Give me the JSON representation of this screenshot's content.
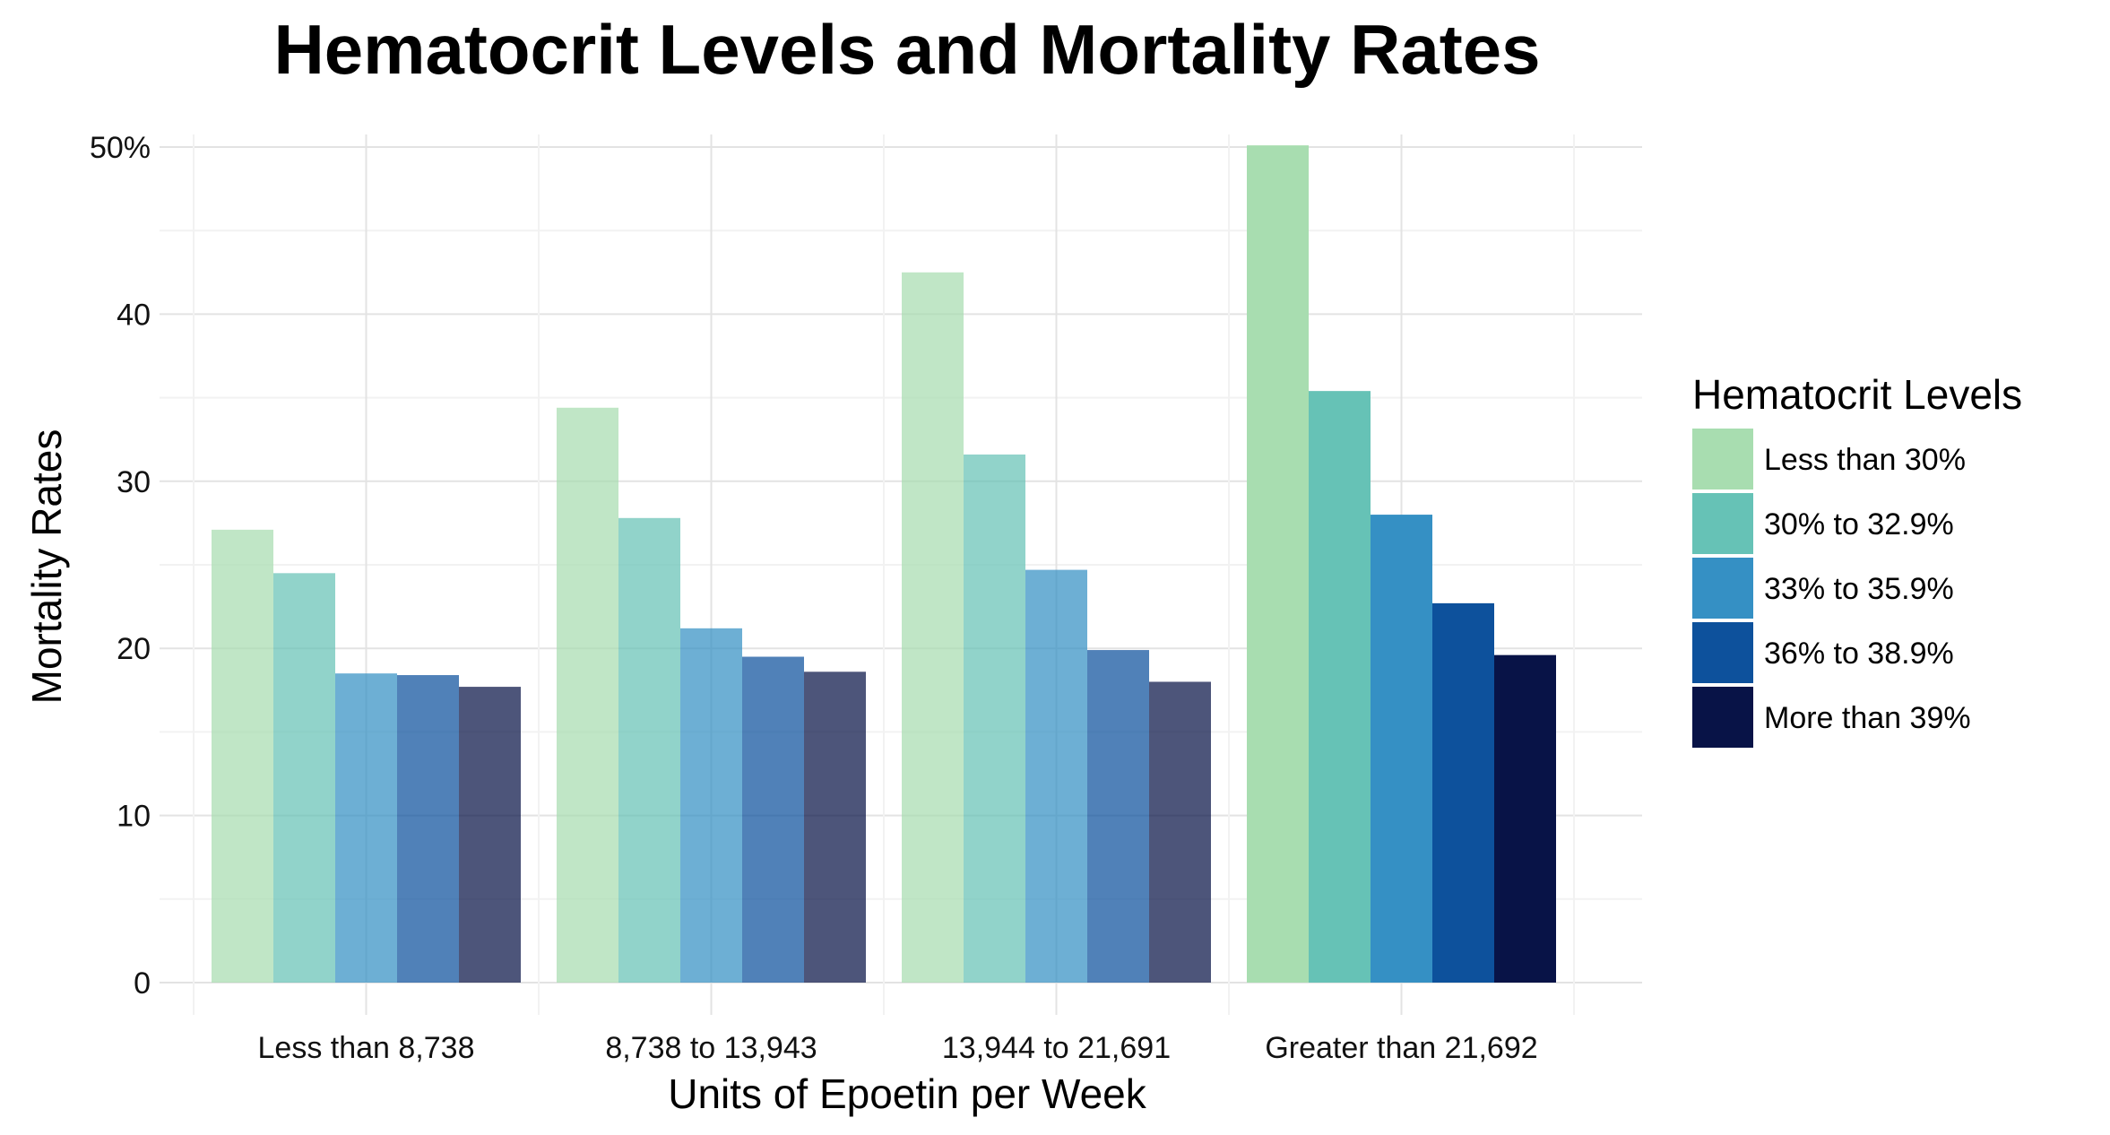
{
  "chart_data": {
    "type": "bar",
    "title": "Hematocrit Levels and Mortality Rates",
    "xlabel": "Units of Epoetin per Week",
    "ylabel": "Mortality Rates",
    "ylim": [
      0,
      50
    ],
    "y_ticks": [
      "0",
      "10",
      "20",
      "30",
      "40",
      "50%"
    ],
    "y_tick_values": [
      0,
      10,
      20,
      30,
      40,
      50
    ],
    "grid": true,
    "categories": [
      "Less than 8,738",
      "8,738 to 13,943",
      "13,944 to 21,691",
      "Greater than 21,692"
    ],
    "legend": {
      "title": "Hematocrit Levels",
      "placement": "right"
    },
    "series": [
      {
        "name": "Less than 30%",
        "color": "#a8ddb0",
        "values": [
          27.1,
          34.4,
          42.5,
          50.1
        ]
      },
      {
        "name": "30% to 32.9%",
        "color": "#66c2b6",
        "values": [
          24.5,
          27.8,
          31.6,
          35.4
        ]
      },
      {
        "name": "33% to 35.9%",
        "color": "#3590c4",
        "values": [
          18.5,
          21.2,
          24.7,
          28.0
        ]
      },
      {
        "name": "36% to 38.9%",
        "color": "#0d519c",
        "values": [
          18.4,
          19.5,
          19.9,
          22.7
        ]
      },
      {
        "name": "More than 39%",
        "color": "#081347",
        "values": [
          17.7,
          18.6,
          18.0,
          19.6
        ]
      }
    ],
    "emphasized_category_index": 3,
    "dimmed_opacity": 0.72
  }
}
